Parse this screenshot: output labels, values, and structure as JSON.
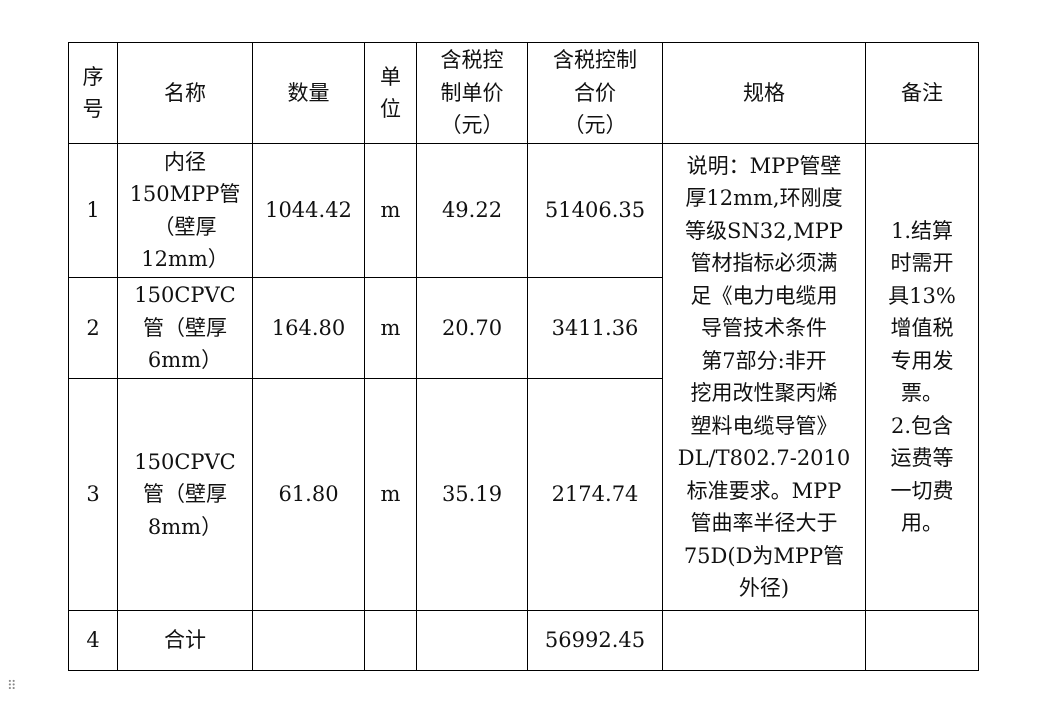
{
  "headers": [
    "序\n号",
    "名称",
    "数量",
    "单\n位",
    "含税控\n制单价\n（元）",
    "含税控制\n合价\n（元）",
    "规格",
    "备注"
  ],
  "rows": [
    {
      "no": "1",
      "name": "内径\n150MPP管\n（壁厚\n12mm）",
      "qty": "1044.42",
      "unit": "m",
      "price": "49.22",
      "total": "51406.35"
    },
    {
      "no": "2",
      "name": "150CPVC\n管（壁厚\n6mm）",
      "qty": "164.80",
      "unit": "m",
      "price": "20.70",
      "total": "3411.36"
    },
    {
      "no": "3",
      "name": "150CPVC\n管（壁厚\n8mm）",
      "qty": "61.80",
      "unit": "m",
      "price": "35.19",
      "total": "2174.74"
    }
  ],
  "spec": "说明：MPP管壁\n厚12mm,环刚度\n等级SN32,MPP\n管材指标必须满\n足《电力电缆用\n导管技术条件\n第7部分:非开\n挖用改性聚丙烯\n塑料电缆导管》\nDL/T802.7-2010\n标准要求。MPP\n管曲率半径大于\n75D(D为MPP管\n外径)",
  "remarks": "1.结算\n时需开\n具13%\n增值税\n专用发\n票。\n2.包含\n运费等\n一切费\n用。",
  "summary": {
    "no": "4",
    "name": "合计",
    "total": "56992.45"
  },
  "handle_icon": "drag-handle-icon"
}
